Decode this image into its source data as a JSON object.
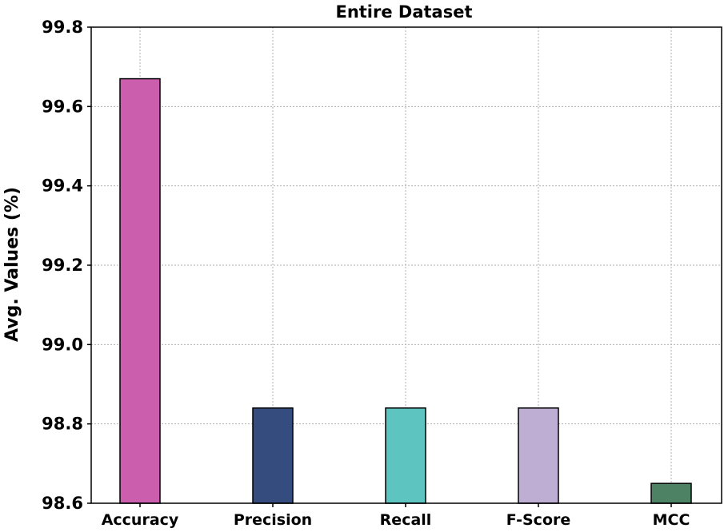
{
  "chart_data": {
    "type": "bar",
    "title": "Entire Dataset",
    "xlabel": "",
    "ylabel": "Avg. Values (%)",
    "categories": [
      "Accuracy",
      "Precision",
      "Recall",
      "F-Score",
      "MCC"
    ],
    "values": [
      99.67,
      98.84,
      98.84,
      98.84,
      98.65
    ],
    "colors": [
      "#cc5fad",
      "#344d7e",
      "#5ec4c0",
      "#bfaed4",
      "#4e8265"
    ],
    "ylim": [
      98.6,
      99.8
    ],
    "yticks": [
      "98.6",
      "98.8",
      "99.0",
      "99.2",
      "99.4",
      "99.6",
      "99.8"
    ],
    "grid": true,
    "legend": "none"
  }
}
